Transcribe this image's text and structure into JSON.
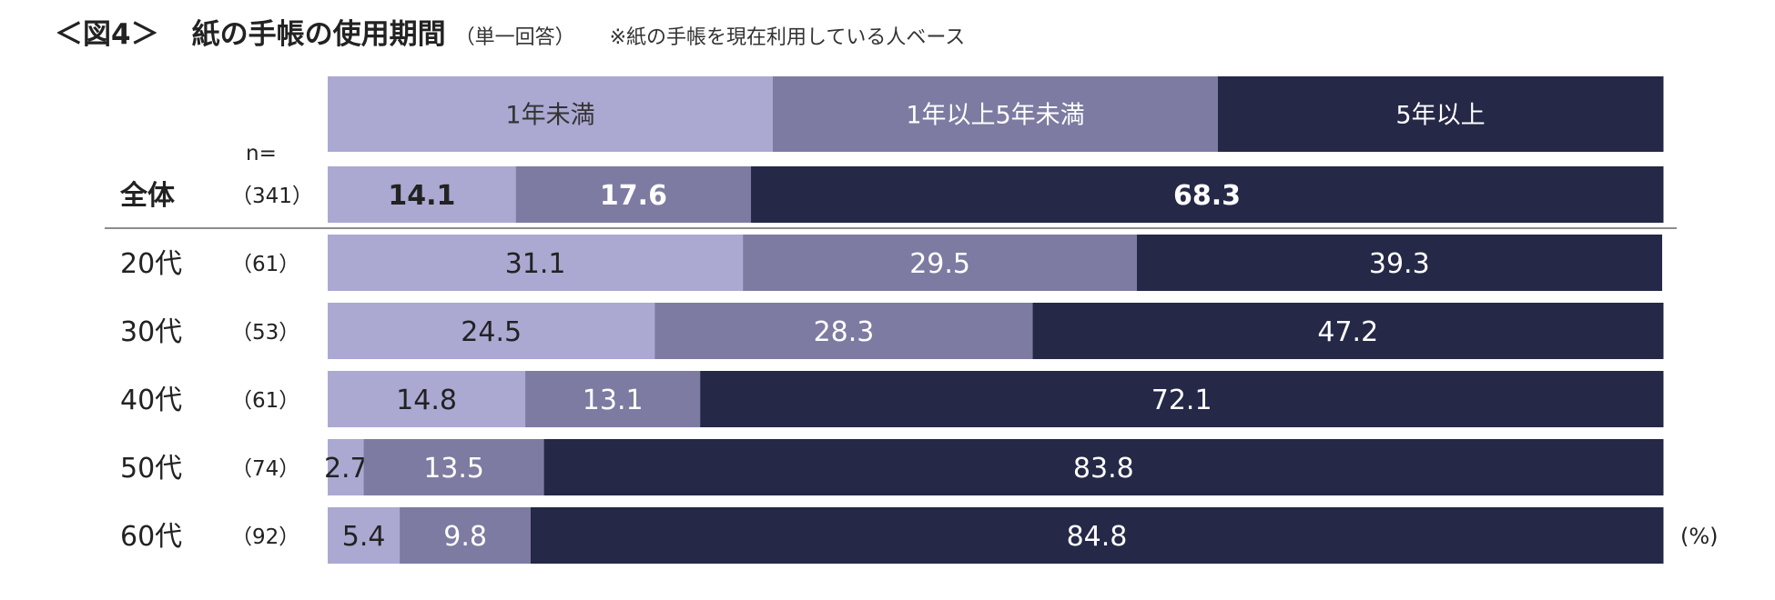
{
  "header": {
    "figure_number": "＜図4＞",
    "title": "紙の手帳の使用期間",
    "subtitle": "（単一回答）",
    "note": "※紙の手帳を現在利用している人ベース"
  },
  "colors": {
    "series_0": "#aba9d2",
    "series_1": "#7d7ba1",
    "series_2": "#252846",
    "divider": "#8c8c8c"
  },
  "n_header": "n=",
  "unit_label": "(%)",
  "chart_data": {
    "type": "bar",
    "orientation": "horizontal",
    "stacked": true,
    "normalized_to": 100,
    "title": "紙の手帳の使用期間",
    "categories": [
      "全体",
      "20代",
      "30代",
      "40代",
      "50代",
      "60代"
    ],
    "sample_sizes": [
      "（341）",
      "（61）",
      "（53）",
      "（61）",
      "（74）",
      "（92）"
    ],
    "highlighted_category": "全体",
    "series": [
      {
        "name": "1年未満",
        "values": [
          14.1,
          31.1,
          24.5,
          14.8,
          2.7,
          5.4
        ],
        "labels": [
          "14.1",
          "31.1",
          "24.5",
          "14.8",
          "2.7",
          "5.4"
        ]
      },
      {
        "name": "1年以上5年未満",
        "values": [
          17.6,
          29.5,
          28.3,
          13.1,
          13.5,
          9.8
        ],
        "labels": [
          "17.6",
          "29.5",
          "28.3",
          "13.1",
          "13.5",
          "9.8"
        ]
      },
      {
        "name": "5年以上",
        "values": [
          68.3,
          39.3,
          47.2,
          72.1,
          83.8,
          84.8
        ],
        "labels": [
          "68.3",
          "39.3",
          "47.2",
          "72.1",
          "83.8",
          "84.8"
        ]
      }
    ],
    "xlim": [
      0,
      100
    ],
    "unit": "%",
    "legend_position": "top"
  }
}
